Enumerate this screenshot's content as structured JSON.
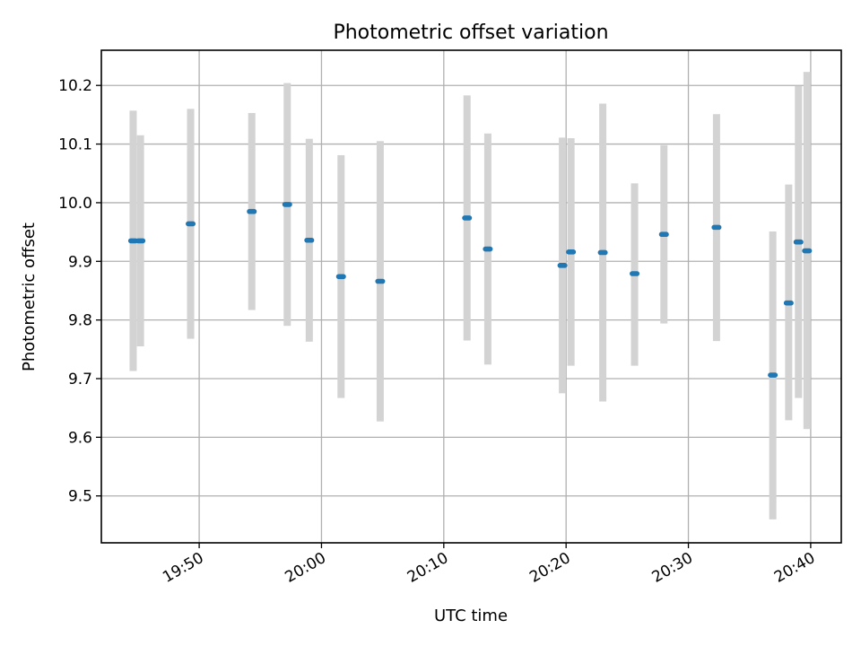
{
  "chart_data": {
    "type": "scatter",
    "title": "Photometric offset variation",
    "xlabel": "UTC time",
    "ylabel": "Photometric offset",
    "x_is_time": true,
    "xlim": [
      "19:42.0",
      "20:42.5"
    ],
    "ylim": [
      9.42,
      10.26
    ],
    "x_ticks": [
      "19:50",
      "20:00",
      "20:10",
      "20:20",
      "20:30",
      "20:40"
    ],
    "y_ticks": [
      9.5,
      9.6,
      9.7,
      9.8,
      9.9,
      10.0,
      10.1,
      10.2
    ],
    "grid": true,
    "marker_color": "#1f77b4",
    "errorbar_color": "#d3d3d3",
    "points": [
      {
        "t": "19:44.6",
        "y": 9.935,
        "ylo": 9.713,
        "yhi": 10.157
      },
      {
        "t": "19:45.2",
        "y": 9.935,
        "ylo": 9.755,
        "yhi": 10.115
      },
      {
        "t": "19:49.3",
        "y": 9.964,
        "ylo": 9.768,
        "yhi": 10.16
      },
      {
        "t": "19:54.3",
        "y": 9.985,
        "ylo": 9.817,
        "yhi": 10.153
      },
      {
        "t": "19:57.2",
        "y": 9.997,
        "ylo": 9.79,
        "yhi": 10.204
      },
      {
        "t": "19:59.0",
        "y": 9.936,
        "ylo": 9.763,
        "yhi": 10.109
      },
      {
        "t": "20:01.6",
        "y": 9.874,
        "ylo": 9.667,
        "yhi": 10.081
      },
      {
        "t": "20:04.8",
        "y": 9.866,
        "ylo": 9.627,
        "yhi": 10.105
      },
      {
        "t": "20:11.9",
        "y": 9.974,
        "ylo": 9.765,
        "yhi": 10.183
      },
      {
        "t": "20:13.6",
        "y": 9.921,
        "ylo": 9.724,
        "yhi": 10.118
      },
      {
        "t": "20:19.7",
        "y": 9.893,
        "ylo": 9.675,
        "yhi": 10.111
      },
      {
        "t": "20:20.4",
        "y": 9.916,
        "ylo": 9.722,
        "yhi": 10.11
      },
      {
        "t": "20:23.0",
        "y": 9.915,
        "ylo": 9.661,
        "yhi": 10.169
      },
      {
        "t": "20:25.6",
        "y": 9.879,
        "ylo": 9.722,
        "yhi": 10.033
      },
      {
        "t": "20:28.0",
        "y": 9.946,
        "ylo": 9.794,
        "yhi": 10.098
      },
      {
        "t": "20:32.3",
        "y": 9.958,
        "ylo": 9.764,
        "yhi": 10.151
      },
      {
        "t": "20:36.9",
        "y": 9.706,
        "ylo": 9.46,
        "yhi": 9.951
      },
      {
        "t": "20:38.2",
        "y": 9.829,
        "ylo": 9.629,
        "yhi": 10.031
      },
      {
        "t": "20:39.0",
        "y": 9.933,
        "ylo": 9.667,
        "yhi": 10.199
      },
      {
        "t": "20:39.7",
        "y": 9.918,
        "ylo": 9.614,
        "yhi": 10.223
      }
    ]
  }
}
